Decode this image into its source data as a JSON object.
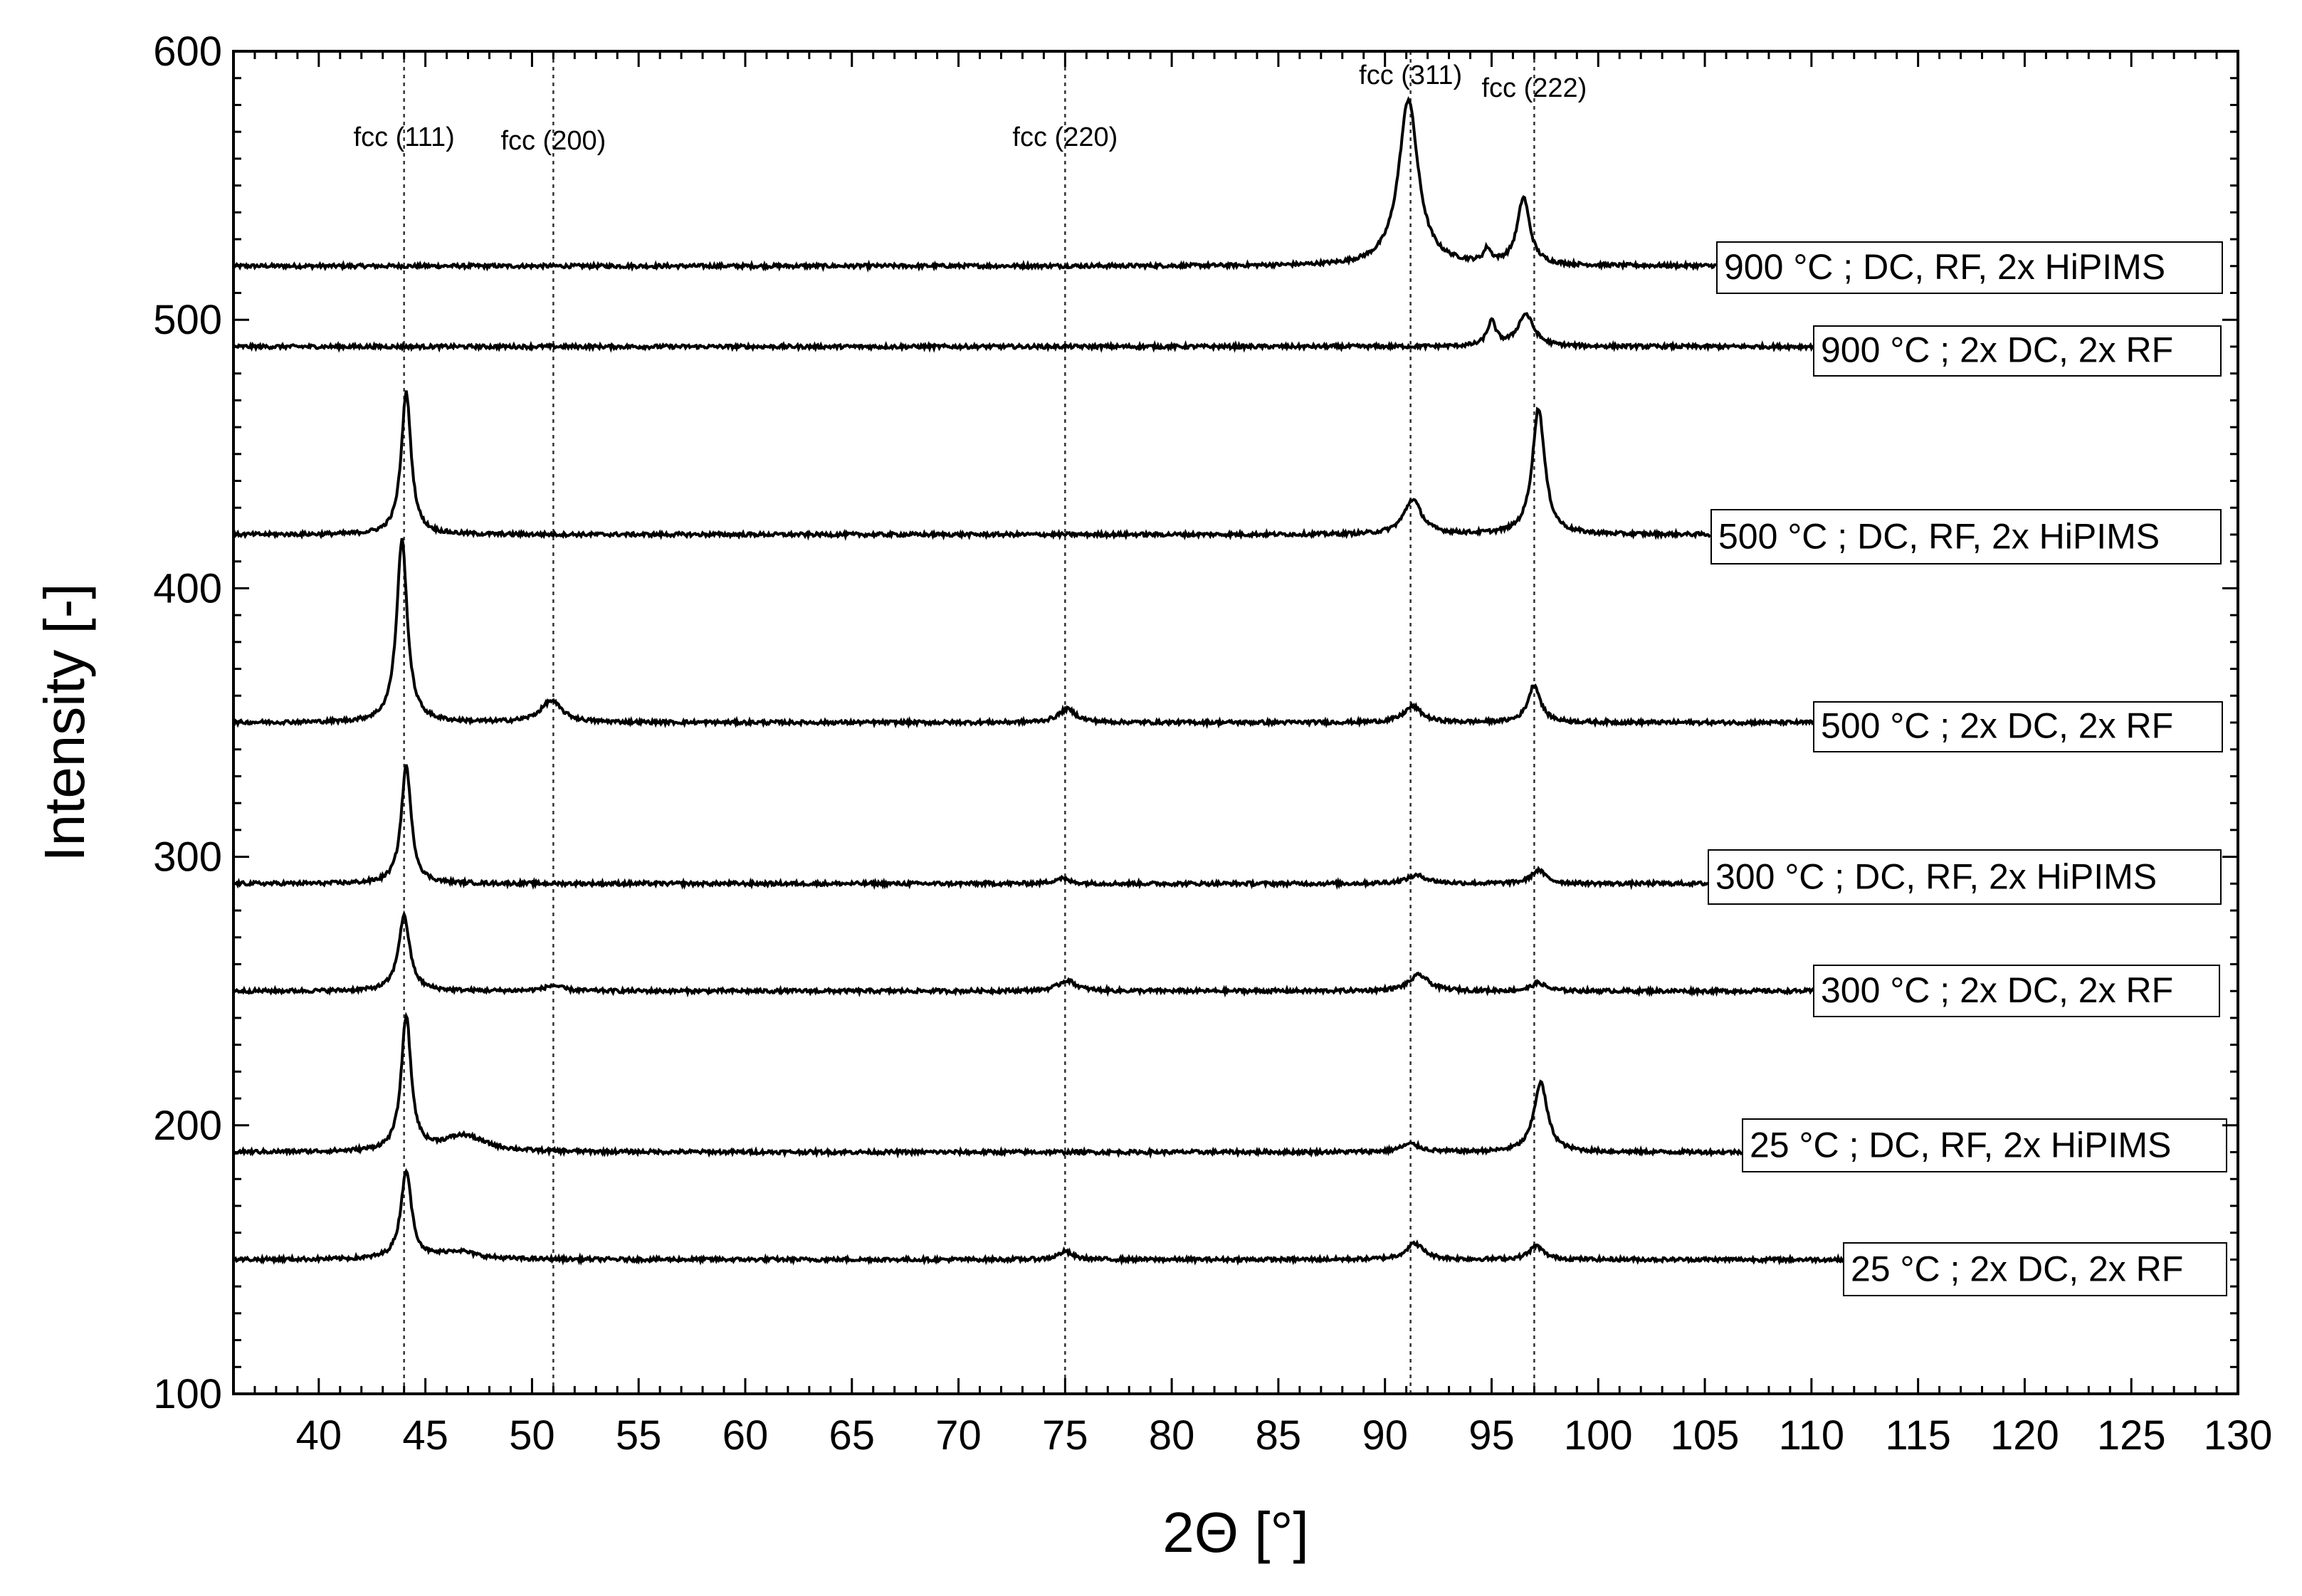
{
  "chart_data": {
    "type": "line",
    "title": "",
    "xlabel": "2Θ [°]",
    "ylabel": "Intensity [-]",
    "xlim": [
      36,
      130
    ],
    "ylim": [
      100,
      600
    ],
    "x_ticks": [
      40,
      45,
      50,
      55,
      60,
      65,
      70,
      75,
      80,
      85,
      90,
      95,
      100,
      105,
      110,
      115,
      120,
      125,
      130
    ],
    "y_ticks": [
      100,
      200,
      300,
      400,
      500,
      600
    ],
    "grid": false,
    "legend": "none (series labels placed at right end of each trace)",
    "reference_lines": [
      {
        "label": "fcc (111)",
        "x": 44.0
      },
      {
        "label": "fcc (200)",
        "x": 51.0
      },
      {
        "label": "fcc (220)",
        "x": 75.0
      },
      {
        "label": "fcc (311)",
        "x": 91.2
      },
      {
        "label": "fcc (222)",
        "x": 97.0
      }
    ],
    "series": [
      {
        "name": "900 °C ; DC, RF, 2x HiPIMS",
        "baseline": 520,
        "peaks": [
          {
            "x": 91.1,
            "height": 62,
            "width": 0.55
          },
          {
            "x": 94.8,
            "height": 5,
            "width": 0.2
          },
          {
            "x": 96.5,
            "height": 25,
            "width": 0.35
          }
        ]
      },
      {
        "name": "900 °C ; 2x DC, 2x RF",
        "baseline": 490,
        "peaks": [
          {
            "x": 95.0,
            "height": 9,
            "width": 0.25
          },
          {
            "x": 96.6,
            "height": 12,
            "width": 0.45
          }
        ]
      },
      {
        "name": "500 °C ; DC, RF, 2x HiPIMS",
        "baseline": 420,
        "peaks": [
          {
            "x": 44.1,
            "height": 53,
            "width": 0.28
          },
          {
            "x": 91.3,
            "height": 13,
            "width": 0.5
          },
          {
            "x": 97.2,
            "height": 47,
            "width": 0.35
          }
        ]
      },
      {
        "name": "500 °C ; 2x DC, 2x RF",
        "baseline": 350,
        "peaks": [
          {
            "x": 43.9,
            "height": 68,
            "width": 0.3
          },
          {
            "x": 50.9,
            "height": 8,
            "width": 0.6
          },
          {
            "x": 75.1,
            "height": 5,
            "width": 0.5
          },
          {
            "x": 91.3,
            "height": 6,
            "width": 0.5
          },
          {
            "x": 97.0,
            "height": 14,
            "width": 0.35
          }
        ]
      },
      {
        "name": "300 °C ; DC, RF, 2x HiPIMS",
        "baseline": 290,
        "peaks": [
          {
            "x": 44.1,
            "height": 44,
            "width": 0.28
          },
          {
            "x": 74.8,
            "height": 2,
            "width": 0.4
          },
          {
            "x": 91.5,
            "height": 3,
            "width": 0.6
          },
          {
            "x": 97.2,
            "height": 5,
            "width": 0.4
          }
        ]
      },
      {
        "name": "300 °C ; 2x DC, 2x RF",
        "baseline": 250,
        "peaks": [
          {
            "x": 44.0,
            "height": 28,
            "width": 0.32
          },
          {
            "x": 51.0,
            "height": 2,
            "width": 0.5
          },
          {
            "x": 75.1,
            "height": 4,
            "width": 0.5
          },
          {
            "x": 91.6,
            "height": 6,
            "width": 0.55
          },
          {
            "x": 97.2,
            "height": 3,
            "width": 0.4
          }
        ]
      },
      {
        "name": "25 °C ; DC, RF, 2x HiPIMS",
        "baseline": 190,
        "peaks": [
          {
            "x": 44.1,
            "height": 50,
            "width": 0.28
          },
          {
            "x": 46.8,
            "height": 6,
            "width": 1.2
          },
          {
            "x": 91.2,
            "height": 3,
            "width": 0.55
          },
          {
            "x": 97.3,
            "height": 26,
            "width": 0.38
          }
        ]
      },
      {
        "name": "25 °C ; 2x DC, 2x RF",
        "baseline": 150,
        "peaks": [
          {
            "x": 44.1,
            "height": 33,
            "width": 0.3
          },
          {
            "x": 46.5,
            "height": 3,
            "width": 1.0
          },
          {
            "x": 75.0,
            "height": 3,
            "width": 0.4
          },
          {
            "x": 91.4,
            "height": 6,
            "width": 0.5
          },
          {
            "x": 97.1,
            "height": 5,
            "width": 0.4
          }
        ]
      }
    ]
  }
}
